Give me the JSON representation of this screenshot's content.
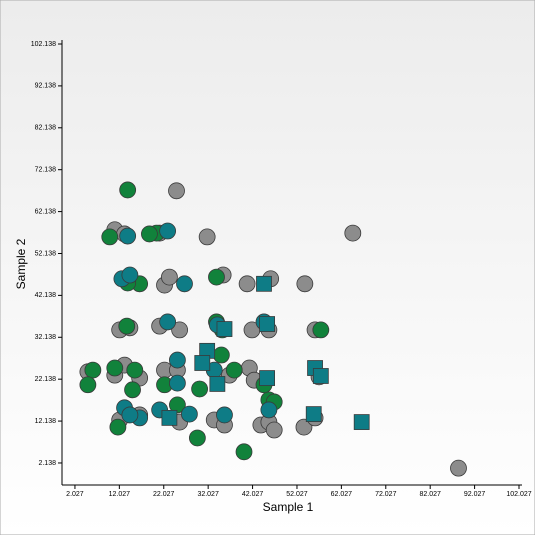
{
  "chart_data": {
    "type": "scatter",
    "x_label": "Sample 1",
    "y_label": "Sample 2",
    "xlim": [
      -0.888,
      102.027
    ],
    "ylim": [
      -3.12,
      102.138
    ],
    "xticks": [
      2.027,
      12.027,
      22.027,
      32.027,
      42.027,
      52.027,
      62.027,
      72.027,
      82.027,
      92.027,
      102.027
    ],
    "yticks": [
      2.138,
      12.138,
      22.138,
      32.138,
      42.138,
      52.138,
      62.138,
      72.138,
      82.138,
      92.138,
      102.138
    ],
    "series": [
      {
        "color": "#8c8c8c",
        "marker": "circle",
        "x": [
          24.9,
          11.0,
          31.8,
          64.6,
          13.2,
          21.1,
          22.2,
          23.3,
          35.4,
          40.8,
          46.1,
          53.8,
          12.1,
          14.4,
          21.1,
          25.6,
          41.9,
          45.7,
          56.1,
          4.94,
          11.0,
          13.2,
          16.6,
          22.2,
          25.1,
          36.8,
          41.3,
          42.4,
          57.0,
          43.9,
          45.7,
          46.9,
          53.6,
          56.1,
          25.6,
          33.4,
          35.7,
          88.4,
          12.1,
          16.6
        ],
        "y": [
          67.1,
          57.8,
          56.1,
          57.0,
          56.8,
          57.0,
          44.6,
          46.5,
          47.0,
          44.9,
          46.1,
          44.9,
          33.9,
          34.4,
          34.8,
          33.9,
          33.9,
          33.9,
          33.9,
          23.9,
          23.1,
          25.5,
          22.4,
          24.3,
          24.3,
          23.1,
          24.8,
          21.9,
          22.7,
          11.2,
          11.9,
          10.0,
          10.7,
          12.9,
          11.9,
          12.4,
          11.2,
          0.9,
          12.4,
          13.6
        ]
      },
      {
        "color": "#11823b",
        "marker": "circle",
        "x": [
          13.9,
          20.4,
          9.87,
          18.8,
          33.9,
          16.6,
          13.9,
          13.7,
          33.9,
          35.2,
          57.4,
          6.06,
          4.94,
          11.0,
          15.5,
          15.0,
          22.2,
          30.1,
          35.0,
          45.7,
          46.9,
          37.9,
          44.6,
          29.6,
          40.1,
          11.7,
          25.1
        ],
        "y": [
          67.3,
          57.0,
          56.1,
          56.8,
          46.5,
          44.9,
          45.1,
          34.8,
          35.8,
          33.9,
          33.9,
          24.3,
          20.8,
          24.8,
          24.3,
          19.6,
          20.8,
          19.8,
          27.9,
          17.2,
          16.7,
          24.3,
          20.8,
          8.1,
          4.8,
          10.7,
          16.0
        ]
      },
      {
        "color": "#0e7c86",
        "marker": "circle",
        "x": [
          22.9,
          13.9,
          12.6,
          14.4,
          26.7,
          22.9,
          34.1,
          44.6,
          25.1,
          21.1,
          13.2,
          16.6,
          14.4,
          27.8,
          35.7,
          33.4,
          45.7,
          25.1
        ],
        "y": [
          57.5,
          56.3,
          46.1,
          47.0,
          44.9,
          35.8,
          35.1,
          35.8,
          21.2,
          14.8,
          15.3,
          12.9,
          13.6,
          13.8,
          13.6,
          24.3,
          14.8,
          26.7
        ]
      },
      {
        "color": "#0e7c86",
        "marker": "square",
        "x": [
          31.8,
          30.7,
          34.1,
          44.6,
          35.7,
          45.3,
          56.1,
          57.4,
          66.6,
          55.8,
          45.3,
          23.3
        ],
        "y": [
          28.9,
          26.0,
          21.0,
          44.9,
          34.1,
          35.3,
          24.8,
          22.9,
          11.9,
          13.8,
          22.4,
          12.9
        ]
      }
    ]
  }
}
